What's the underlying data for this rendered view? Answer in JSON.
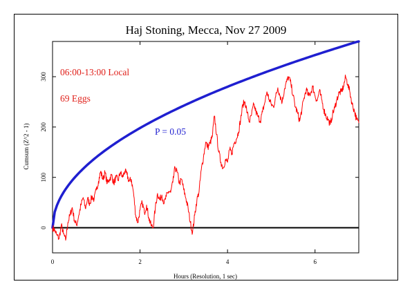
{
  "chart_data": {
    "type": "line",
    "title": "Haj Stoning, Mecca, Nov 27 2009",
    "xlabel": "Hours (Resolution, 1 sec)",
    "ylabel": "Cumsum (Z^2 - 1)",
    "xlim": [
      0,
      7
    ],
    "ylim": [
      -50,
      370
    ],
    "x_ticks": [
      0,
      2,
      4,
      6
    ],
    "y_ticks": [
      0,
      100,
      200,
      300
    ],
    "annotations": {
      "time_range": "06:00-13:00 Local",
      "eggs": "69 Eggs",
      "p_label": "P = 0.05"
    },
    "colors": {
      "cumsum": "#ff0000",
      "envelope": "#1f1fd0",
      "baseline": "#000000",
      "annotation_red": "#e0201a",
      "annotation_blue": "#1f1fd0"
    },
    "series": [
      {
        "values_role": "cumulative deviation",
        "points": [
          [
            0,
            0
          ],
          [
            0.05,
            -5
          ],
          [
            0.1,
            -15
          ],
          [
            0.15,
            -22
          ],
          [
            0.2,
            5
          ],
          [
            0.25,
            -12
          ],
          [
            0.3,
            -25
          ],
          [
            0.35,
            10
          ],
          [
            0.4,
            25
          ],
          [
            0.45,
            40
          ],
          [
            0.5,
            15
          ],
          [
            0.55,
            5
          ],
          [
            0.6,
            25
          ],
          [
            0.65,
            45
          ],
          [
            0.7,
            60
          ],
          [
            0.75,
            38
          ],
          [
            0.8,
            58
          ],
          [
            0.85,
            48
          ],
          [
            0.9,
            62
          ],
          [
            0.95,
            56
          ],
          [
            1.0,
            75
          ],
          [
            1.05,
            92
          ],
          [
            1.1,
            112
          ],
          [
            1.15,
            96
          ],
          [
            1.2,
            110
          ],
          [
            1.25,
            88
          ],
          [
            1.3,
            96
          ],
          [
            1.35,
            105
          ],
          [
            1.4,
            88
          ],
          [
            1.45,
            100
          ],
          [
            1.5,
            94
          ],
          [
            1.55,
            110
          ],
          [
            1.6,
            100
          ],
          [
            1.65,
            112
          ],
          [
            1.7,
            106
          ],
          [
            1.75,
            92
          ],
          [
            1.8,
            96
          ],
          [
            1.85,
            70
          ],
          [
            1.9,
            25
          ],
          [
            1.95,
            10
          ],
          [
            2.0,
            35
          ],
          [
            2.05,
            50
          ],
          [
            2.1,
            30
          ],
          [
            2.15,
            45
          ],
          [
            2.2,
            20
          ],
          [
            2.25,
            5
          ],
          [
            2.3,
            0
          ],
          [
            2.35,
            40
          ],
          [
            2.4,
            68
          ],
          [
            2.45,
            55
          ],
          [
            2.5,
            65
          ],
          [
            2.55,
            48
          ],
          [
            2.6,
            62
          ],
          [
            2.65,
            72
          ],
          [
            2.7,
            70
          ],
          [
            2.75,
            90
          ],
          [
            2.8,
            120
          ],
          [
            2.85,
            110
          ],
          [
            2.9,
            88
          ],
          [
            2.95,
            96
          ],
          [
            3.0,
            75
          ],
          [
            3.05,
            58
          ],
          [
            3.1,
            38
          ],
          [
            3.15,
            10
          ],
          [
            3.2,
            -10
          ],
          [
            3.25,
            25
          ],
          [
            3.3,
            55
          ],
          [
            3.35,
            72
          ],
          [
            3.4,
            115
          ],
          [
            3.45,
            140
          ],
          [
            3.5,
            170
          ],
          [
            3.55,
            160
          ],
          [
            3.6,
            168
          ],
          [
            3.65,
            180
          ],
          [
            3.7,
            222
          ],
          [
            3.75,
            185
          ],
          [
            3.8,
            150
          ],
          [
            3.85,
            130
          ],
          [
            3.9,
            118
          ],
          [
            3.95,
            135
          ],
          [
            4.0,
            130
          ],
          [
            4.05,
            155
          ],
          [
            4.1,
            148
          ],
          [
            4.15,
            168
          ],
          [
            4.2,
            176
          ],
          [
            4.25,
            190
          ],
          [
            4.3,
            215
          ],
          [
            4.35,
            245
          ],
          [
            4.4,
            250
          ],
          [
            4.45,
            228
          ],
          [
            4.5,
            210
          ],
          [
            4.55,
            225
          ],
          [
            4.6,
            245
          ],
          [
            4.65,
            230
          ],
          [
            4.7,
            220
          ],
          [
            4.75,
            212
          ],
          [
            4.8,
            230
          ],
          [
            4.85,
            248
          ],
          [
            4.9,
            270
          ],
          [
            4.95,
            255
          ],
          [
            5.0,
            245
          ],
          [
            5.05,
            240
          ],
          [
            5.1,
            260
          ],
          [
            5.15,
            278
          ],
          [
            5.2,
            262
          ],
          [
            5.25,
            250
          ],
          [
            5.3,
            275
          ],
          [
            5.35,
            290
          ],
          [
            5.4,
            300
          ],
          [
            5.45,
            285
          ],
          [
            5.5,
            262
          ],
          [
            5.55,
            240
          ],
          [
            5.6,
            228
          ],
          [
            5.65,
            212
          ],
          [
            5.7,
            235
          ],
          [
            5.75,
            258
          ],
          [
            5.8,
            275
          ],
          [
            5.85,
            262
          ],
          [
            5.9,
            268
          ],
          [
            5.95,
            280
          ],
          [
            6.0,
            262
          ],
          [
            6.05,
            252
          ],
          [
            6.1,
            272
          ],
          [
            6.15,
            255
          ],
          [
            6.2,
            235
          ],
          [
            6.25,
            222
          ],
          [
            6.3,
            215
          ],
          [
            6.35,
            205
          ],
          [
            6.4,
            225
          ],
          [
            6.45,
            238
          ],
          [
            6.5,
            255
          ],
          [
            6.55,
            268
          ],
          [
            6.6,
            270
          ],
          [
            6.65,
            280
          ],
          [
            6.7,
            300
          ],
          [
            6.75,
            285
          ],
          [
            6.8,
            268
          ],
          [
            6.85,
            245
          ],
          [
            6.9,
            232
          ],
          [
            6.95,
            215
          ],
          [
            7.0,
            208
          ]
        ]
      },
      {
        "values_role": "P = 0.05 envelope",
        "formula": "y = 140 * sqrt(x)"
      }
    ]
  }
}
